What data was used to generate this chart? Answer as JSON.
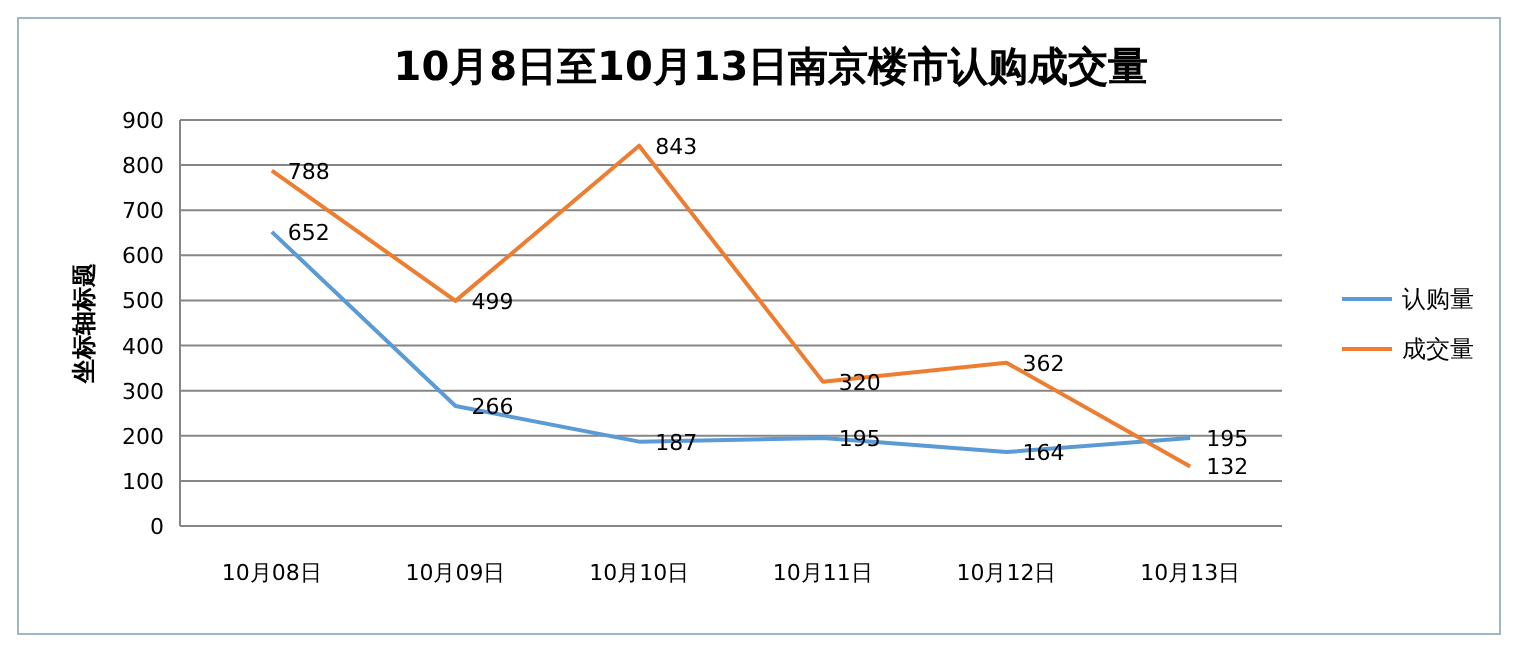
{
  "chart_data": {
    "type": "line",
    "title": "10月8日至10月13日南京楼市认购成交量",
    "ylabel": "坐标轴标题",
    "categories": [
      "10月08日",
      "10月09日",
      "10月10日",
      "10月11日",
      "10月12日",
      "10月13日"
    ],
    "series": [
      {
        "name": "认购量",
        "color": "#5b9bd5",
        "values": [
          652,
          266,
          187,
          195,
          164,
          195
        ]
      },
      {
        "name": "成交量",
        "color": "#ed7d31",
        "values": [
          788,
          499,
          843,
          320,
          362,
          132
        ]
      }
    ],
    "ylim": [
      0,
      900
    ],
    "yticks": [
      0,
      100,
      200,
      300,
      400,
      500,
      600,
      700,
      800,
      900
    ],
    "grid": "y",
    "legend": "right",
    "data_labels": true,
    "marker": "none",
    "line_style": "solid"
  }
}
